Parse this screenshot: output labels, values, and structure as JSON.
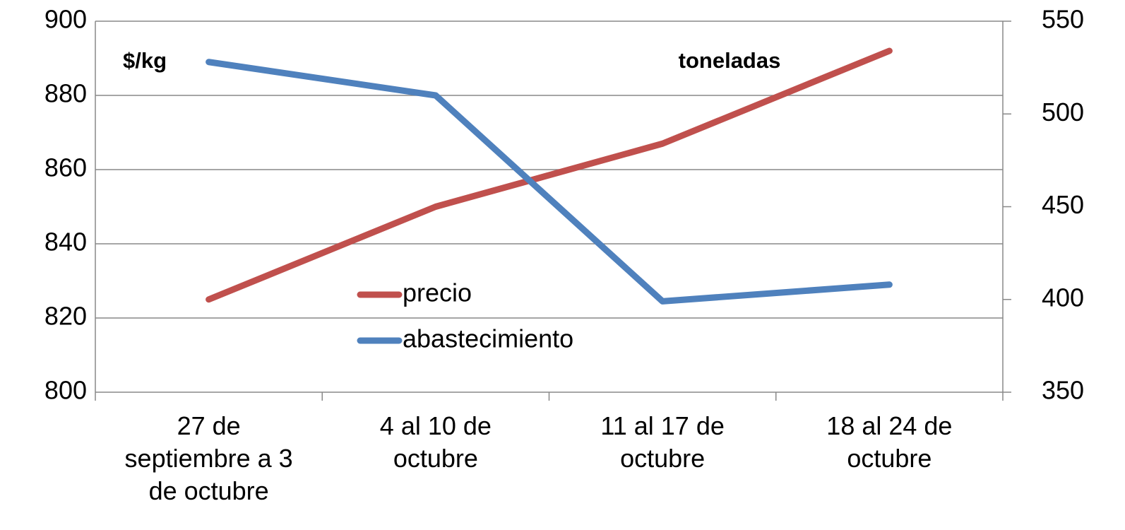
{
  "chart_data": {
    "type": "line",
    "categories": [
      "27 de septiembre a 3 de octubre",
      "4 al 10 de octubre",
      "11 al 17 de octubre",
      "18 al 24 de octubre"
    ],
    "series": [
      {
        "name": "precio",
        "color": "#c0504d",
        "values": [
          825,
          850,
          867,
          892
        ]
      },
      {
        "name": "abastecimiento",
        "color": "#4f81bd",
        "values": [
          528,
          510,
          399,
          408
        ],
        "axis": "y2"
      }
    ],
    "ylim": [
      800,
      900
    ],
    "yticks": [
      800,
      820,
      840,
      860,
      880,
      900
    ],
    "y2lim": [
      350,
      550
    ],
    "y2ticks": [
      350,
      400,
      450,
      500,
      550
    ],
    "annotations": [
      "$/kg",
      "toneladas"
    ],
    "grid": true
  }
}
